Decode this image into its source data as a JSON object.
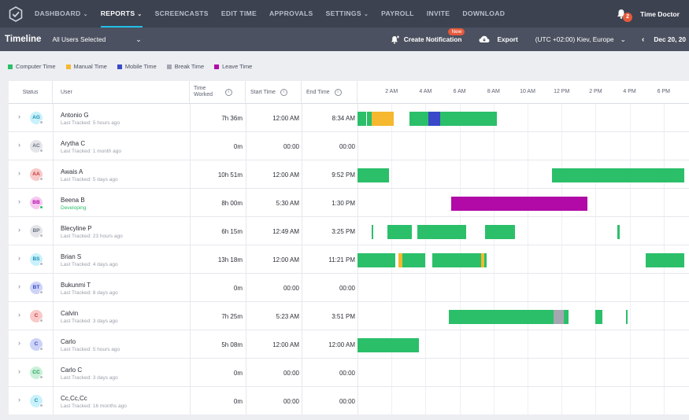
{
  "nav": {
    "items": [
      {
        "label": "DASHBOARD",
        "dropdown": true,
        "active": false
      },
      {
        "label": "REPORTS",
        "dropdown": true,
        "active": true
      },
      {
        "label": "SCREENCASTS",
        "dropdown": false,
        "active": false
      },
      {
        "label": "EDIT TIME",
        "dropdown": false,
        "active": false
      },
      {
        "label": "APPROVALS",
        "dropdown": false,
        "active": false
      },
      {
        "label": "SETTINGS",
        "dropdown": true,
        "active": false
      },
      {
        "label": "PAYROLL",
        "dropdown": false,
        "active": false
      },
      {
        "label": "INVITE",
        "dropdown": false,
        "active": false
      },
      {
        "label": "DOWNLOAD",
        "dropdown": false,
        "active": false
      }
    ],
    "notification_count": "2",
    "account_name": "Time Doctor"
  },
  "subheader": {
    "title": "Timeline",
    "users_filter": "All Users Selected",
    "create_notification": "Create Notification",
    "new_badge": "New",
    "export": "Export",
    "timezone": "(UTC +02:00) Kiev, Europe",
    "date": "Dec 20, 20"
  },
  "legend": [
    {
      "label": "Computer Time",
      "color": "#2bbf6a"
    },
    {
      "label": "Manual Time",
      "color": "#f5b82e"
    },
    {
      "label": "Mobile Time",
      "color": "#3949c9"
    },
    {
      "label": "Break Time",
      "color": "#a3a8b0"
    },
    {
      "label": "Leave Time",
      "color": "#b10aa7"
    }
  ],
  "columns": {
    "status": "Status",
    "user": "User",
    "time_worked": "Time Worked",
    "start_time": "Start Time",
    "end_time": "End Time"
  },
  "timeline_hours": [
    "2 AM",
    "4 AM",
    "6 AM",
    "8 AM",
    "10 AM",
    "12 PM",
    "2 PM",
    "4 PM",
    "6 PM"
  ],
  "users": [
    {
      "initials": "AG",
      "avatar_bg": "#c8f1fb",
      "avatar_fg": "#1f8db0",
      "online": false,
      "name": "Antonio G",
      "sub": "Last Tracked: 5 hours ago",
      "worked": "7h 36m",
      "start": "12:00 AM",
      "end": "8:34 AM",
      "segments": [
        {
          "start": 0.0,
          "end": 0.5,
          "type": "computer"
        },
        {
          "start": 0.55,
          "end": 0.85,
          "type": "computer"
        },
        {
          "start": 0.85,
          "end": 2.15,
          "type": "manual"
        },
        {
          "start": 3.05,
          "end": 4.15,
          "type": "computer"
        },
        {
          "start": 4.15,
          "end": 4.85,
          "type": "mobile"
        },
        {
          "start": 4.85,
          "end": 8.2,
          "type": "computer"
        }
      ]
    },
    {
      "initials": "AC",
      "avatar_bg": "#e3e5e9",
      "avatar_fg": "#6b7180",
      "online": false,
      "name": "Arytha C",
      "sub": "Last Tracked: 1 month ago",
      "worked": "0m",
      "start": "00:00",
      "end": "00:00",
      "segments": []
    },
    {
      "initials": "AA",
      "avatar_bg": "#f9c9c9",
      "avatar_fg": "#c23a3a",
      "online": false,
      "name": "Awais A",
      "sub": "Last Tracked: 5 days ago",
      "worked": "10h 51m",
      "start": "12:00 AM",
      "end": "9:52 PM",
      "segments": [
        {
          "start": 0.0,
          "end": 1.85,
          "type": "computer"
        },
        {
          "start": 11.45,
          "end": 19.2,
          "type": "computer"
        }
      ]
    },
    {
      "initials": "BB",
      "avatar_bg": "#f7c9f2",
      "avatar_fg": "#b10aa7",
      "online": true,
      "name": "Beena B",
      "sub": "Developing",
      "sub_active": true,
      "worked": "8h 00m",
      "start": "5:30 AM",
      "end": "1:30 PM",
      "segments": [
        {
          "start": 5.5,
          "end": 13.5,
          "type": "leave"
        }
      ]
    },
    {
      "initials": "BP",
      "avatar_bg": "#e3e5e9",
      "avatar_fg": "#6b7180",
      "online": false,
      "name": "Blecyline P",
      "sub": "Last Tracked: 23 hours ago",
      "worked": "6h 15m",
      "start": "12:49 AM",
      "end": "3:25 PM",
      "segments": [
        {
          "start": 0.82,
          "end": 0.92,
          "type": "computer"
        },
        {
          "start": 1.75,
          "end": 3.2,
          "type": "computer"
        },
        {
          "start": 3.5,
          "end": 6.4,
          "type": "computer"
        },
        {
          "start": 7.5,
          "end": 9.25,
          "type": "computer"
        },
        {
          "start": 15.3,
          "end": 15.42,
          "type": "computer"
        }
      ]
    },
    {
      "initials": "BS",
      "avatar_bg": "#c8f1fb",
      "avatar_fg": "#1f8db0",
      "online": false,
      "name": "Brian S",
      "sub": "Last Tracked: 4 days ago",
      "worked": "13h 18m",
      "start": "12:00 AM",
      "end": "11:21 PM",
      "segments": [
        {
          "start": 0.0,
          "end": 2.2,
          "type": "computer"
        },
        {
          "start": 2.4,
          "end": 2.65,
          "type": "manual"
        },
        {
          "start": 2.65,
          "end": 4.0,
          "type": "computer"
        },
        {
          "start": 4.4,
          "end": 7.25,
          "type": "computer"
        },
        {
          "start": 7.25,
          "end": 7.45,
          "type": "manual"
        },
        {
          "start": 7.45,
          "end": 7.6,
          "type": "computer"
        },
        {
          "start": 16.95,
          "end": 19.2,
          "type": "computer"
        }
      ]
    },
    {
      "initials": "BT",
      "avatar_bg": "#cdd3f7",
      "avatar_fg": "#3949c9",
      "online": false,
      "name": "Bukunmi T",
      "sub": "Last Tracked: 8 days ago",
      "worked": "0m",
      "start": "00:00",
      "end": "00:00",
      "segments": []
    },
    {
      "initials": "C",
      "avatar_bg": "#f9c9c9",
      "avatar_fg": "#c23a3a",
      "online": false,
      "name": "Calvin",
      "sub": "Last Tracked: 3 days ago",
      "worked": "7h 25m",
      "start": "5:23 AM",
      "end": "3:51 PM",
      "segments": [
        {
          "start": 5.38,
          "end": 11.55,
          "type": "computer"
        },
        {
          "start": 11.55,
          "end": 12.15,
          "type": "break"
        },
        {
          "start": 12.15,
          "end": 12.4,
          "type": "computer"
        },
        {
          "start": 14.0,
          "end": 14.4,
          "type": "computer"
        },
        {
          "start": 15.8,
          "end": 15.88,
          "type": "computer"
        }
      ]
    },
    {
      "initials": "C",
      "avatar_bg": "#cdd3f7",
      "avatar_fg": "#3949c9",
      "online": false,
      "name": "Carlo",
      "sub": "Last Tracked: 5 hours ago",
      "worked": "5h 08m",
      "start": "12:00 AM",
      "end": "12:00 AM",
      "segments": [
        {
          "start": 0.0,
          "end": 3.6,
          "type": "computer"
        }
      ]
    },
    {
      "initials": "CC",
      "avatar_bg": "#c9f1d9",
      "avatar_fg": "#1f9a55",
      "online": false,
      "name": "Carlo C",
      "sub": "Last Tracked: 3 days ago",
      "worked": "0m",
      "start": "00:00",
      "end": "00:00",
      "segments": []
    },
    {
      "initials": "C",
      "avatar_bg": "#c8f1fb",
      "avatar_fg": "#1f8db0",
      "online": false,
      "name": "Cc,Cc,Cc",
      "sub": "Last Tracked: 16 months ago",
      "worked": "0m",
      "start": "00:00",
      "end": "00:00",
      "segments": []
    }
  ]
}
